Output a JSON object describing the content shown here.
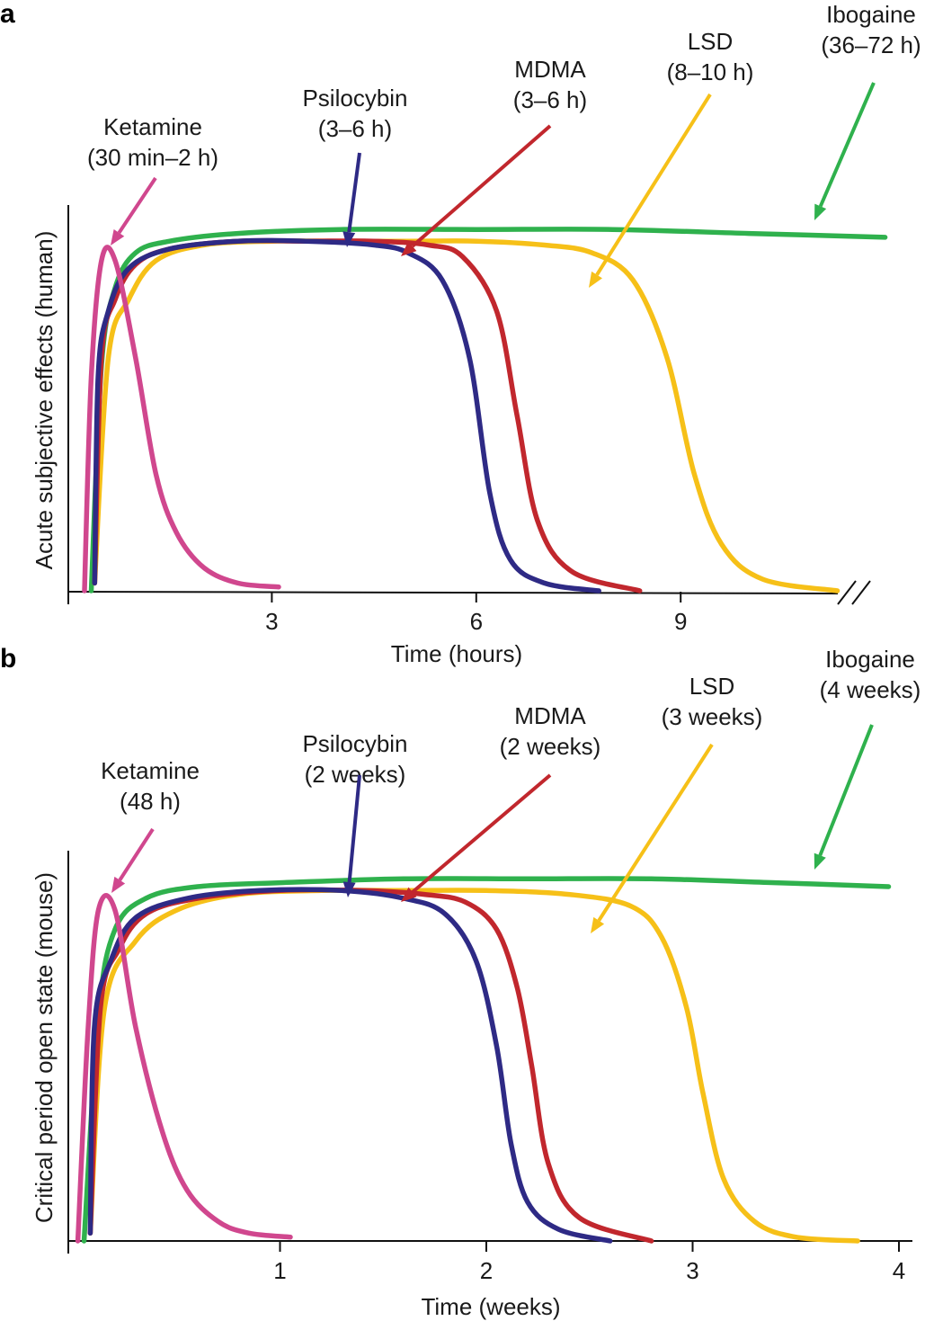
{
  "chart_data": [
    {
      "panel_label": "a",
      "type": "line",
      "xlabel": "Time (hours)",
      "ylabel": "Acute subjective effects (human)",
      "x_ticks": [
        "3",
        "6",
        "9"
      ],
      "x_axis_break": "//",
      "series": [
        {
          "name": "Ketamine",
          "duration_label": "(30 min–2 h)",
          "color": "#d0478e",
          "x": [
            0.25,
            0.35,
            0.5,
            0.7,
            1.0,
            1.3,
            1.6,
            2.0,
            2.5,
            3.1
          ],
          "y": [
            0,
            0.55,
            0.85,
            0.85,
            0.6,
            0.3,
            0.15,
            0.06,
            0.02,
            0.01
          ]
        },
        {
          "name": "Psilocybin",
          "duration_label": "(3–6 h)",
          "color": "#2e2a85",
          "x": [
            0.4,
            0.45,
            0.6,
            0.9,
            1.5,
            2.5,
            3.5,
            4.5,
            5.0,
            5.5,
            5.9,
            6.2,
            6.5,
            7.0,
            7.8
          ],
          "y": [
            0.02,
            0.55,
            0.72,
            0.83,
            0.88,
            0.9,
            0.9,
            0.89,
            0.87,
            0.8,
            0.6,
            0.25,
            0.08,
            0.02,
            0
          ]
        },
        {
          "name": "MDMA",
          "duration_label": "(3–6 h)",
          "color": "#c1272d",
          "x": [
            0.4,
            0.5,
            0.7,
            1.0,
            1.5,
            2.5,
            3.5,
            4.5,
            5.3,
            5.8,
            6.3,
            6.6,
            6.9,
            7.4,
            8.4
          ],
          "y": [
            0.02,
            0.6,
            0.75,
            0.84,
            0.88,
            0.9,
            0.9,
            0.9,
            0.89,
            0.86,
            0.72,
            0.45,
            0.18,
            0.05,
            0
          ]
        },
        {
          "name": "LSD",
          "duration_label": "(8–10 h)",
          "color": "#f6c018",
          "x": [
            0.4,
            0.6,
            0.9,
            1.3,
            2.0,
            3.0,
            4.0,
            5.0,
            6.0,
            7.0,
            7.7,
            8.3,
            8.8,
            9.2,
            9.6,
            10.2,
            11.3
          ],
          "y": [
            0.02,
            0.6,
            0.75,
            0.85,
            0.89,
            0.9,
            0.9,
            0.9,
            0.9,
            0.89,
            0.87,
            0.8,
            0.6,
            0.3,
            0.12,
            0.03,
            0
          ]
        },
        {
          "name": "Ibogaine",
          "duration_label": "(36–72 h)",
          "color": "#2fb14d",
          "x": [
            0.35,
            0.5,
            0.7,
            1.0,
            1.5,
            2.5,
            4.0,
            6.0,
            8.0,
            10.0,
            12.0
          ],
          "y": [
            0.0,
            0.58,
            0.78,
            0.87,
            0.9,
            0.92,
            0.93,
            0.93,
            0.93,
            0.92,
            0.91
          ]
        }
      ]
    },
    {
      "panel_label": "b",
      "type": "line",
      "xlabel": "Time (weeks)",
      "ylabel": "Critical period open state (mouse)",
      "x_ticks": [
        "1",
        "2",
        "3",
        "4"
      ],
      "series": [
        {
          "name": "Ketamine",
          "duration_label": "(48 h)",
          "color": "#d0478e",
          "x": [
            0.02,
            0.07,
            0.12,
            0.2,
            0.3,
            0.43,
            0.55,
            0.7,
            0.85,
            1.05
          ],
          "y": [
            0,
            0.55,
            0.85,
            0.85,
            0.55,
            0.28,
            0.13,
            0.05,
            0.02,
            0.01
          ]
        },
        {
          "name": "Psilocybin",
          "duration_label": "(2 weeks)",
          "color": "#2e2a85",
          "x": [
            0.08,
            0.1,
            0.18,
            0.3,
            0.55,
            0.9,
            1.3,
            1.6,
            1.8,
            1.95,
            2.05,
            2.12,
            2.2,
            2.35,
            2.6
          ],
          "y": [
            0.02,
            0.55,
            0.72,
            0.83,
            0.88,
            0.9,
            0.9,
            0.88,
            0.84,
            0.72,
            0.5,
            0.25,
            0.1,
            0.03,
            0
          ]
        },
        {
          "name": "MDMA",
          "duration_label": "(2 weeks)",
          "color": "#c1272d",
          "x": [
            0.08,
            0.13,
            0.22,
            0.35,
            0.6,
            1.0,
            1.4,
            1.7,
            1.9,
            2.05,
            2.15,
            2.22,
            2.3,
            2.45,
            2.8
          ],
          "y": [
            0.02,
            0.6,
            0.75,
            0.84,
            0.88,
            0.9,
            0.9,
            0.89,
            0.87,
            0.8,
            0.65,
            0.45,
            0.2,
            0.06,
            0
          ]
        },
        {
          "name": "LSD",
          "duration_label": "(3 weeks)",
          "color": "#f6c018",
          "x": [
            0.08,
            0.15,
            0.3,
            0.5,
            0.8,
            1.2,
            1.6,
            2.0,
            2.4,
            2.7,
            2.85,
            2.97,
            3.05,
            3.15,
            3.3,
            3.5,
            3.8
          ],
          "y": [
            0.02,
            0.6,
            0.77,
            0.85,
            0.89,
            0.9,
            0.9,
            0.9,
            0.89,
            0.86,
            0.78,
            0.6,
            0.38,
            0.16,
            0.05,
            0.01,
            0
          ]
        },
        {
          "name": "Ibogaine",
          "duration_label": "(4 weeks)",
          "color": "#2fb14d",
          "x": [
            0.05,
            0.12,
            0.2,
            0.35,
            0.6,
            1.0,
            1.6,
            2.2,
            2.8,
            3.4,
            3.95
          ],
          "y": [
            0.0,
            0.58,
            0.8,
            0.88,
            0.91,
            0.92,
            0.93,
            0.93,
            0.93,
            0.92,
            0.91
          ]
        }
      ]
    }
  ]
}
